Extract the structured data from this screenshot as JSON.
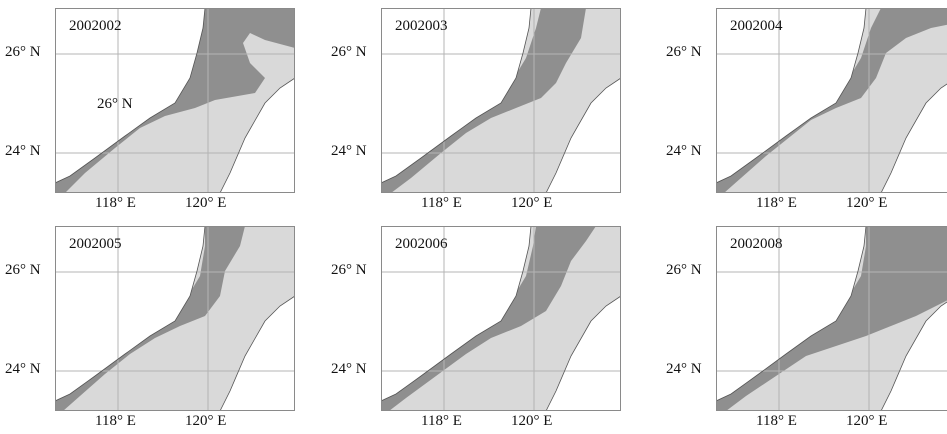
{
  "panels": [
    {
      "title": "2002002",
      "inner_label": "26°  N"
    },
    {
      "title": "2002003"
    },
    {
      "title": "2002004"
    },
    {
      "title": "2002005"
    },
    {
      "title": "2002006"
    },
    {
      "title": "2002008"
    }
  ],
  "axis_labels": {
    "lat_26": "26° N",
    "lat_24": "24° N",
    "lon_118": "118° E",
    "lon_120": "120° E"
  },
  "colors": {
    "sea_light": "#d9d9d9",
    "zone_dark": "#8f8f8f",
    "land": "#ffffff",
    "grid": "#b4b4b4",
    "coast": "#555555"
  }
}
